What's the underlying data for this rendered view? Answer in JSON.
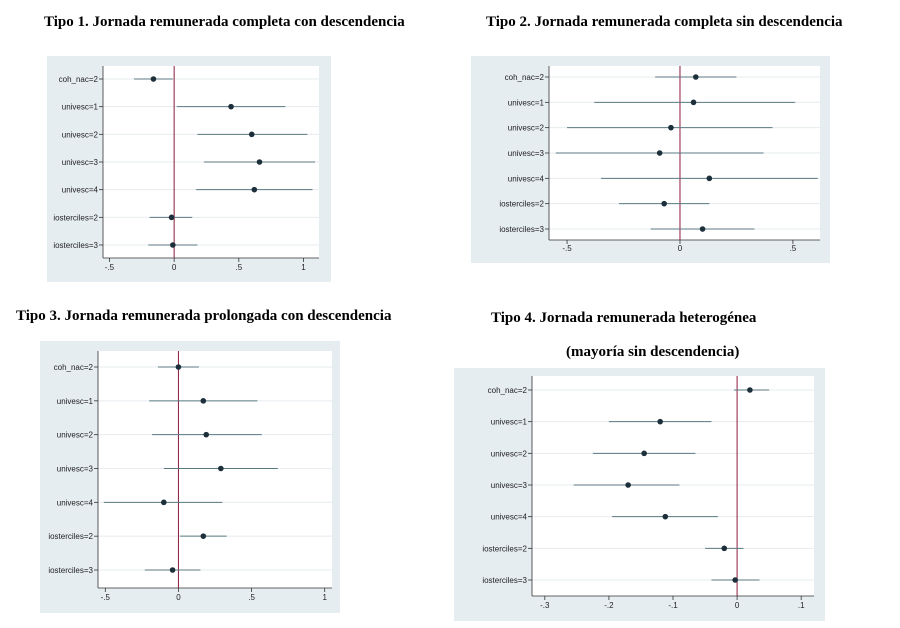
{
  "charts": [
    {
      "title": "Tipo 1. Jornada remunerada completa con descendencia",
      "chart_data": {
        "type": "scatter",
        "subtype": "coefficient-plot",
        "categories": [
          "coh_nac=2",
          "univesc=1",
          "univesc=2",
          "univesc=3",
          "univesc=4",
          "iosterciles=2",
          "iosterciles=3"
        ],
        "estimates": [
          -0.16,
          0.44,
          0.6,
          0.66,
          0.62,
          -0.02,
          -0.01
        ],
        "ci_low": [
          -0.31,
          0.02,
          0.18,
          0.23,
          0.17,
          -0.19,
          -0.2
        ],
        "ci_high": [
          -0.01,
          0.86,
          1.03,
          1.09,
          1.07,
          0.14,
          0.18
        ],
        "xticks": [
          -0.5,
          0,
          0.5,
          1
        ],
        "xtick_labels": [
          "-.5",
          "0",
          ".5",
          "1"
        ],
        "xlim": [
          -0.55,
          1.12
        ],
        "reference_line": 0
      }
    },
    {
      "title": "Tipo 2. Jornada remunerada completa sin descendencia",
      "chart_data": {
        "type": "scatter",
        "subtype": "coefficient-plot",
        "categories": [
          "coh_nac=2",
          "univesc=1",
          "univesc=2",
          "univesc=3",
          "univesc=4",
          "iosterciles=2",
          "iosterciles=3"
        ],
        "estimates": [
          0.07,
          0.06,
          -0.04,
          -0.09,
          0.13,
          -0.07,
          0.1
        ],
        "ci_low": [
          -0.11,
          -0.38,
          -0.5,
          -0.55,
          -0.35,
          -0.27,
          -0.13
        ],
        "ci_high": [
          0.25,
          0.51,
          0.41,
          0.37,
          0.61,
          0.13,
          0.33
        ],
        "xticks": [
          -0.5,
          0,
          0.5
        ],
        "xtick_labels": [
          "-.5",
          "0",
          ".5"
        ],
        "xlim": [
          -0.58,
          0.62
        ],
        "reference_line": 0
      }
    },
    {
      "title": "Tipo 3. Jornada remunerada prolongada con descendencia",
      "chart_data": {
        "type": "scatter",
        "subtype": "coefficient-plot",
        "categories": [
          "coh_nac=2",
          "univesc=1",
          "univesc=2",
          "univesc=3",
          "univesc=4",
          "iosterciles=2",
          "iosterciles=3"
        ],
        "estimates": [
          0.0,
          0.17,
          0.19,
          0.29,
          -0.1,
          0.17,
          -0.04
        ],
        "ci_low": [
          -0.14,
          -0.2,
          -0.18,
          -0.1,
          -0.51,
          0.01,
          -0.23
        ],
        "ci_high": [
          0.14,
          0.54,
          0.57,
          0.68,
          0.3,
          0.33,
          0.15
        ],
        "xticks": [
          -0.5,
          0,
          0.5,
          1
        ],
        "xtick_labels": [
          "-.5",
          "0",
          ".5",
          "1"
        ],
        "xlim": [
          -0.55,
          1.05
        ],
        "reference_line": 0
      }
    },
    {
      "title": "Tipo 4. Jornada remunerada heterogénea",
      "subtitle": "(mayoría sin descendencia)",
      "chart_data": {
        "type": "scatter",
        "subtype": "coefficient-plot",
        "categories": [
          "coh_nac=2",
          "univesc=1",
          "univesc=2",
          "univesc=3",
          "univesc=4",
          "iosterciles=2",
          "iosterciles=3"
        ],
        "estimates": [
          0.02,
          -0.12,
          -0.145,
          -0.17,
          -0.112,
          -0.02,
          -0.003
        ],
        "ci_low": [
          -0.005,
          -0.2,
          -0.225,
          -0.255,
          -0.195,
          -0.05,
          -0.04
        ],
        "ci_high": [
          0.05,
          -0.04,
          -0.065,
          -0.09,
          -0.03,
          0.01,
          0.035
        ],
        "xticks": [
          -0.3,
          -0.2,
          -0.1,
          0,
          0.1
        ],
        "xtick_labels": [
          "-.3",
          "-.2",
          "-.1",
          "0",
          ".1"
        ],
        "xlim": [
          -0.32,
          0.12
        ],
        "reference_line": 0
      }
    }
  ]
}
